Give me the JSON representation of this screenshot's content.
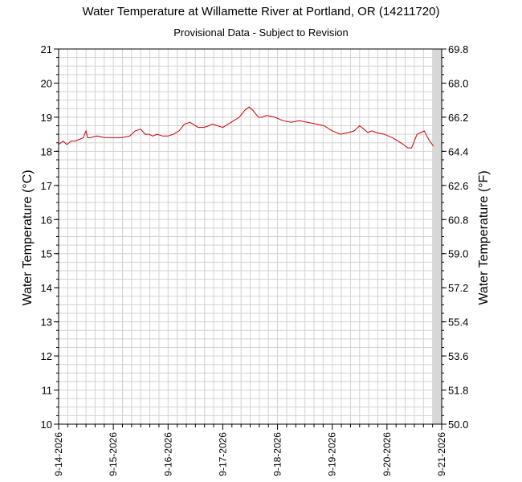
{
  "chart_data": {
    "type": "line",
    "title": "Water Temperature at Willamette River at Portland, OR (14211720)",
    "subtitle": "Provisional Data - Subject to Revision",
    "ylabel_left": "Water Temperature (°C)",
    "ylabel_right": "Water Temperature (°F)",
    "ylim": [
      10,
      21
    ],
    "ylim_right": [
      50.0,
      69.8
    ],
    "yticks_left": [
      "10",
      "11",
      "12",
      "13",
      "14",
      "15",
      "16",
      "17",
      "18",
      "19",
      "20",
      "21"
    ],
    "yticks_right": [
      "50.0",
      "51.8",
      "53.6",
      "55.4",
      "57.2",
      "59.0",
      "60.8",
      "62.6",
      "64.4",
      "66.2",
      "68.0",
      "69.8"
    ],
    "xlim": [
      0,
      7
    ],
    "xticks": [
      "9-14-2026",
      "9-15-2026",
      "9-16-2026",
      "9-17-2026",
      "9-18-2026",
      "9-19-2026",
      "9-20-2026",
      "9-21-2026"
    ],
    "grid": true,
    "shaded_region_start_day": 6.83,
    "colors": {
      "line": "#cc0000",
      "grid": "#d3d3d3",
      "shade": "#d8d8d8"
    },
    "series": [
      {
        "x": [
          0.0,
          0.08,
          0.15,
          0.23,
          0.3,
          0.38,
          0.45,
          0.5,
          0.53,
          0.58,
          0.7,
          0.85,
          1.0,
          1.15,
          1.3,
          1.4,
          1.5,
          1.58,
          1.65,
          1.72,
          1.8,
          1.9,
          2.0,
          2.1,
          2.2,
          2.3,
          2.4,
          2.55,
          2.65,
          2.75,
          2.8,
          2.9,
          3.0,
          3.1,
          3.2,
          3.3,
          3.4,
          3.48,
          3.55,
          3.6,
          3.65,
          3.72,
          3.8,
          3.95,
          4.1,
          4.25,
          4.4,
          4.55,
          4.7,
          4.85,
          5.0,
          5.15,
          5.3,
          5.4,
          5.5,
          5.58,
          5.65,
          5.72,
          5.8,
          5.95,
          6.1,
          6.2,
          6.3,
          6.38,
          6.45,
          6.5,
          6.55,
          6.62,
          6.68,
          6.73,
          6.78,
          6.85
        ],
        "y": [
          18.2,
          18.3,
          18.2,
          18.3,
          18.3,
          18.35,
          18.4,
          18.6,
          18.4,
          18.4,
          18.45,
          18.4,
          18.4,
          18.4,
          18.45,
          18.6,
          18.65,
          18.5,
          18.5,
          18.45,
          18.5,
          18.45,
          18.45,
          18.5,
          18.6,
          18.8,
          18.85,
          18.7,
          18.7,
          18.75,
          18.8,
          18.75,
          18.7,
          18.8,
          18.9,
          19.0,
          19.2,
          19.3,
          19.2,
          19.1,
          19.0,
          19.0,
          19.05,
          19.0,
          18.9,
          18.85,
          18.9,
          18.85,
          18.8,
          18.75,
          18.6,
          18.5,
          18.55,
          18.6,
          18.75,
          18.65,
          18.55,
          18.6,
          18.55,
          18.5,
          18.4,
          18.3,
          18.2,
          18.1,
          18.1,
          18.3,
          18.5,
          18.55,
          18.6,
          18.45,
          18.3,
          18.15
        ]
      }
    ]
  }
}
